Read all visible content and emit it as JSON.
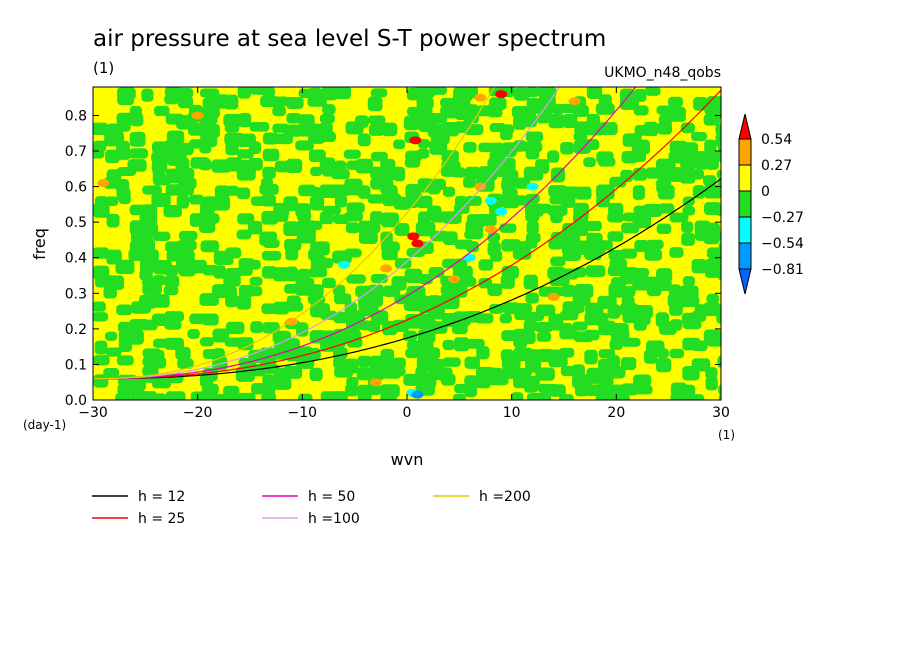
{
  "chart_data": {
    "type": "heatmap",
    "title": "air pressure at sea level S-T power spectrum",
    "subtitle": "(1)",
    "source_label": "UKMO_n48_qobs",
    "xlabel": "wvn",
    "ylabel": "freq",
    "x_unit": "(1)",
    "y_unit": "(day-1)",
    "xlim": [
      -30,
      30
    ],
    "ylim": [
      0,
      0.88
    ],
    "x_ticks": [
      -30,
      -20,
      -10,
      0,
      10,
      20,
      30
    ],
    "y_ticks": [
      0.0,
      0.1,
      0.2,
      0.3,
      0.4,
      0.5,
      0.6,
      0.7,
      0.8
    ],
    "colorbar": {
      "levels": [
        "0.54",
        "0.27",
        "0",
        "-0.27",
        "-0.54",
        "-0.81"
      ],
      "colors": [
        "#ff0000",
        "#ffa500",
        "#ffff00",
        "#22dd22",
        "#00ffff",
        "#0099ff",
        "#0066ff"
      ]
    },
    "dispersion_curves": [
      {
        "name": "h = 12",
        "color": "#000000",
        "h": 12
      },
      {
        "name": "h = 25",
        "color": "#ff0000",
        "h": 25
      },
      {
        "name": "h = 50",
        "color": "#e600b4",
        "h": 50
      },
      {
        "name": "h =100",
        "color": "#d9a0e0",
        "h": 100
      },
      {
        "name": "h =200",
        "color": "#e6c800",
        "h": 200
      }
    ]
  }
}
